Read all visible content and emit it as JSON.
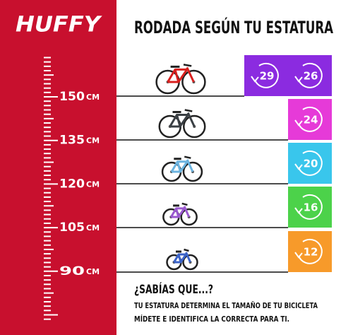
{
  "header": {
    "logo": "HUFFY",
    "title": "RODADA SEGÚN TU ESTATURA"
  },
  "scale": [
    {
      "number": 150,
      "unit": "CM"
    },
    {
      "number": 135,
      "unit": "CM"
    },
    {
      "number": 120,
      "unit": "CM"
    },
    {
      "number": 105,
      "unit": "CM"
    },
    {
      "number": 90,
      "unit": "CM"
    }
  ],
  "rows": [
    {
      "sizes": [
        29,
        26
      ],
      "color": "#8b2be0"
    },
    {
      "sizes": [
        24
      ],
      "color": "#e63ad8"
    },
    {
      "sizes": [
        20
      ],
      "color": "#39c6ec"
    },
    {
      "sizes": [
        16
      ],
      "color": "#4cd24a"
    },
    {
      "sizes": [
        12
      ],
      "color": "#f79a2a"
    }
  ],
  "footer": {
    "question": "¿SABÍAS QUE...?",
    "lines": [
      "TU ESTATURA DETERMINA EL TAMAÑO DE TU BICICLETA",
      "MÍDETE E IDENTIFICA LA CORRECTA PARA TI."
    ]
  }
}
